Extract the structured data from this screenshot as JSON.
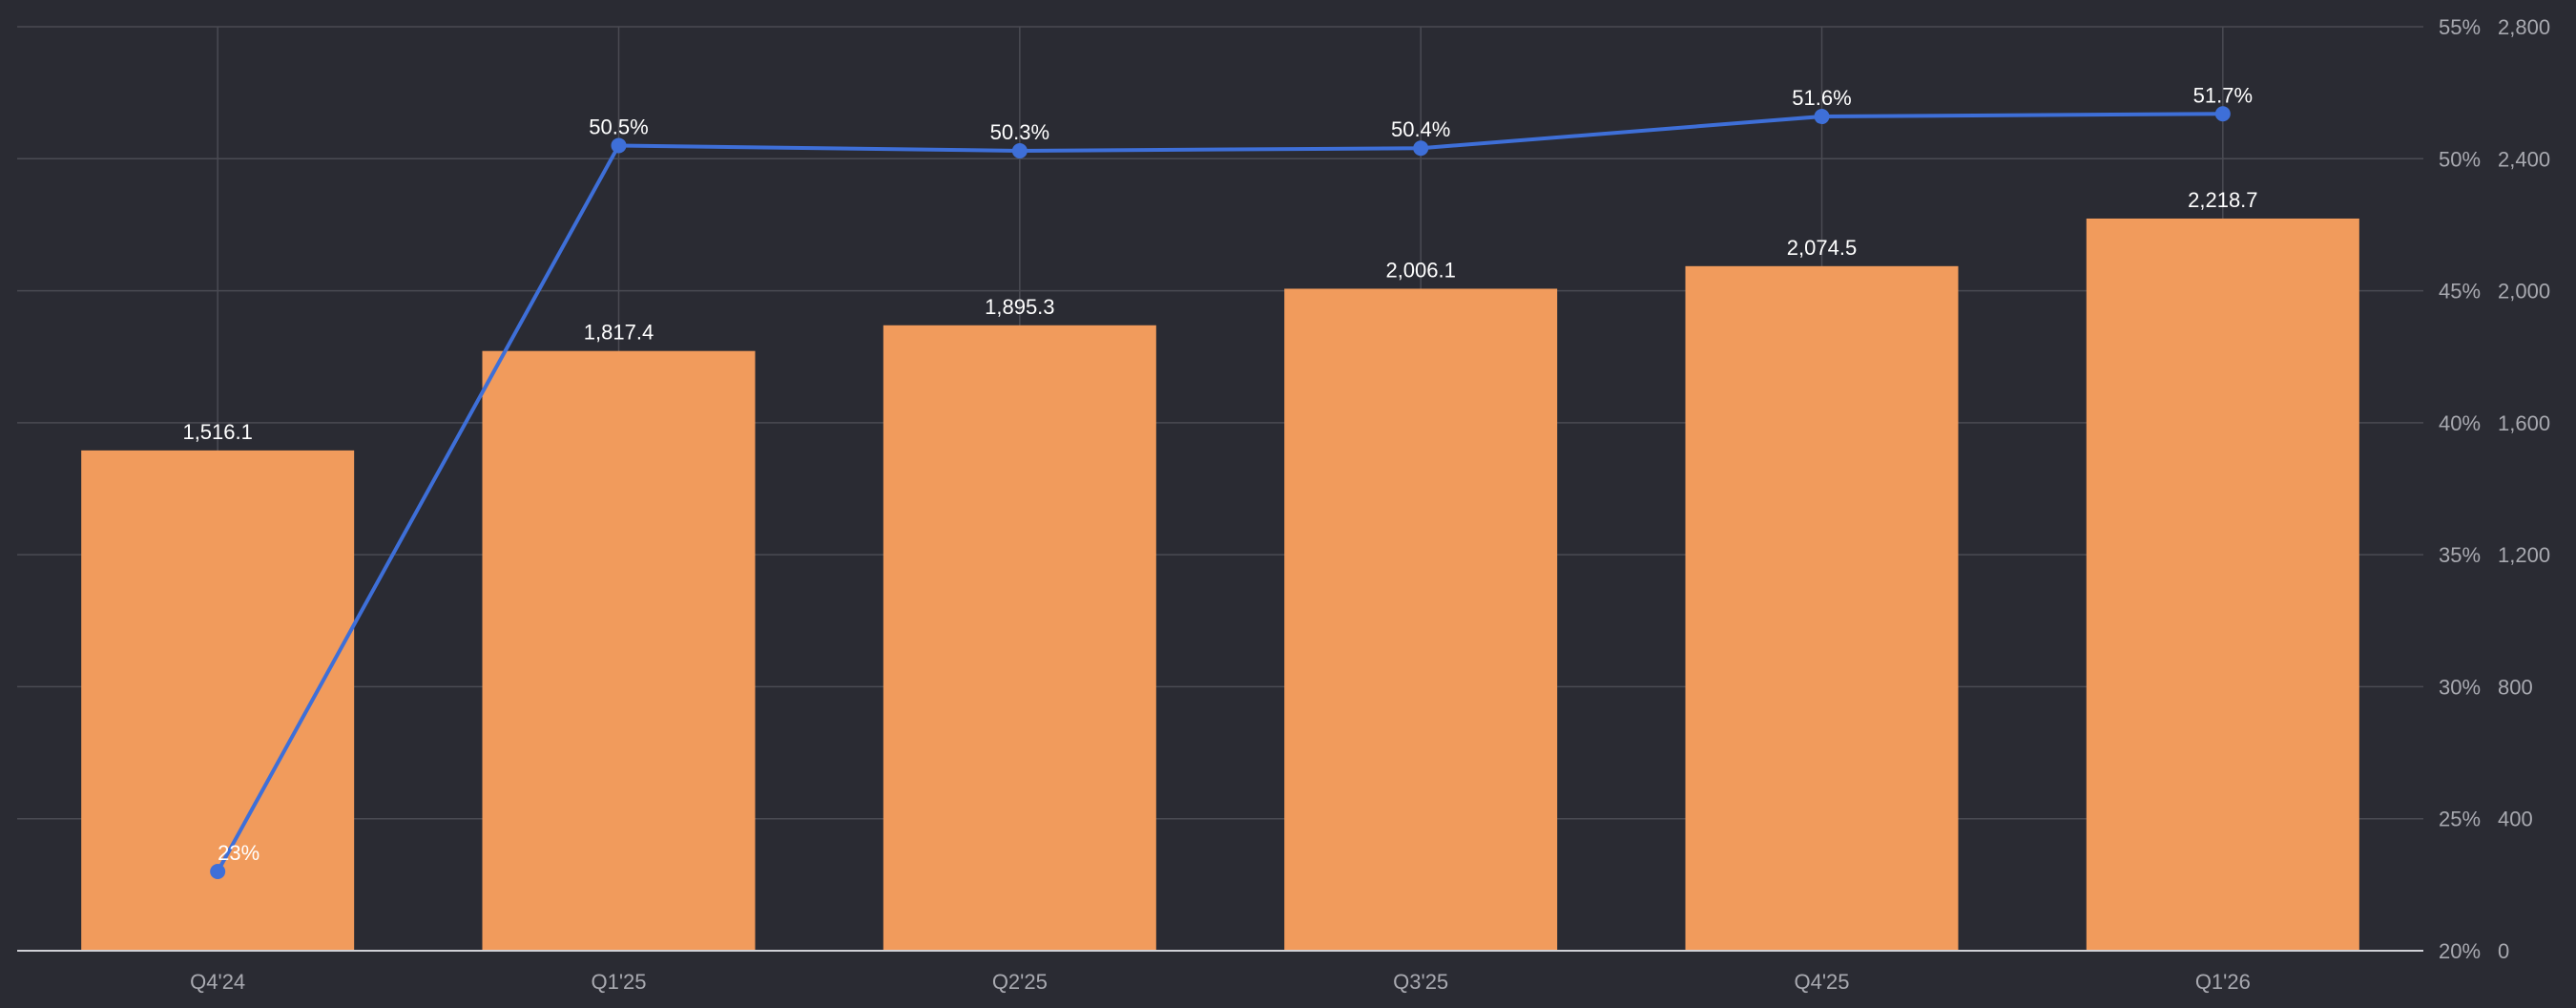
{
  "chart_data": {
    "type": "bar",
    "categories": [
      "Q4'24",
      "Q1'25",
      "Q2'25",
      "Q3'25",
      "Q4'25",
      "Q1'26"
    ],
    "series": [
      {
        "type": "bar",
        "values": [
          1516.1,
          1817.4,
          1895.3,
          2006.1,
          2074.5,
          2218.7
        ],
        "labels": [
          "1,516.1",
          "1,817.4",
          "1,895.3",
          "2,006.1",
          "2,074.5",
          "2,218.7"
        ],
        "color": "#f19b5c",
        "axis": "right-outer"
      },
      {
        "type": "line",
        "values": [
          23,
          50.5,
          50.3,
          50.4,
          51.6,
          51.7
        ],
        "labels": [
          "23%",
          "50.5%",
          "50.3%",
          "50.4%",
          "51.6%",
          "51.7%"
        ],
        "color": "#3e6fd8",
        "axis": "right-inner"
      }
    ],
    "y_bar_axis": {
      "ylim": [
        0,
        2800
      ],
      "ticks": [
        0,
        400,
        800,
        1200,
        1600,
        2000,
        2400,
        2800
      ],
      "tick_labels": [
        "0",
        "400",
        "800",
        "1,200",
        "1,600",
        "2,000",
        "2,400",
        "2,800"
      ]
    },
    "y_line_axis": {
      "ylim": [
        20,
        55
      ],
      "ticks": [
        20,
        25,
        30,
        35,
        40,
        45,
        50,
        55
      ],
      "tick_labels": [
        "20%",
        "25%",
        "30%",
        "35%",
        "40%",
        "45%",
        "50%",
        "55%"
      ]
    },
    "grid": true,
    "legend": "none",
    "background": "#2a2b33"
  }
}
